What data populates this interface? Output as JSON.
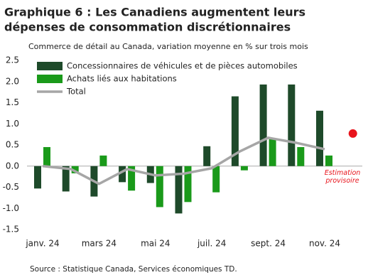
{
  "chart_data": {
    "type": "bar-line",
    "title": "Graphique 6 : Les Canadiens augmentent leurs",
    "title_line2": "dépenses de consommation discrétionnaires",
    "subtitle": "Commerce de détail au Canada, variation moyenne en % sur trois mois",
    "source": "Source : Statistique Canada, Services économiques TD.",
    "categories": [
      "janv. 24",
      null,
      "mars 24",
      null,
      "mai 24",
      null,
      "juil. 24",
      null,
      "sept. 24",
      null,
      "nov. 24",
      null
    ],
    "series": [
      {
        "name": "Concessionnaires de véhicules et de pièces automobiles",
        "color": "#1e4a2a",
        "kind": "bar",
        "values": [
          -0.53,
          -0.6,
          -0.72,
          -0.38,
          -0.4,
          -1.12,
          0.47,
          1.65,
          1.93,
          1.93,
          1.31,
          null
        ]
      },
      {
        "name": "Achats liés aux habitations",
        "color": "#1a9a1a",
        "kind": "bar",
        "values": [
          0.45,
          -0.17,
          0.25,
          -0.58,
          -0.97,
          -0.85,
          -0.62,
          -0.1,
          0.65,
          0.45,
          0.25,
          null
        ]
      },
      {
        "name": "Total",
        "color": "#a6a6a6",
        "kind": "line",
        "values": [
          0.0,
          -0.07,
          -0.42,
          -0.07,
          -0.22,
          -0.18,
          -0.05,
          0.35,
          0.67,
          0.55,
          0.4,
          null
        ]
      }
    ],
    "estimate": {
      "label": "Estimation provisoire",
      "color": "#e8141c",
      "values": [
        null,
        null,
        null,
        null,
        null,
        null,
        null,
        null,
        null,
        null,
        null,
        0.77
      ]
    },
    "ylim": [
      -1.5,
      2.5
    ],
    "yticks": [
      {
        "value": -1.5,
        "label": "-1.5"
      },
      {
        "value": -1,
        "label": "-1.0"
      },
      {
        "value": -0.5,
        "label": "-0.5"
      },
      {
        "value": 0,
        "label": "0.0"
      },
      {
        "value": 0.5,
        "label": "0.5"
      },
      {
        "value": 1,
        "label": "1.0"
      },
      {
        "value": 1.5,
        "label": "1.5"
      },
      {
        "value": 2,
        "label": "2.0"
      },
      {
        "value": 2.5,
        "label": "2.5"
      }
    ]
  }
}
